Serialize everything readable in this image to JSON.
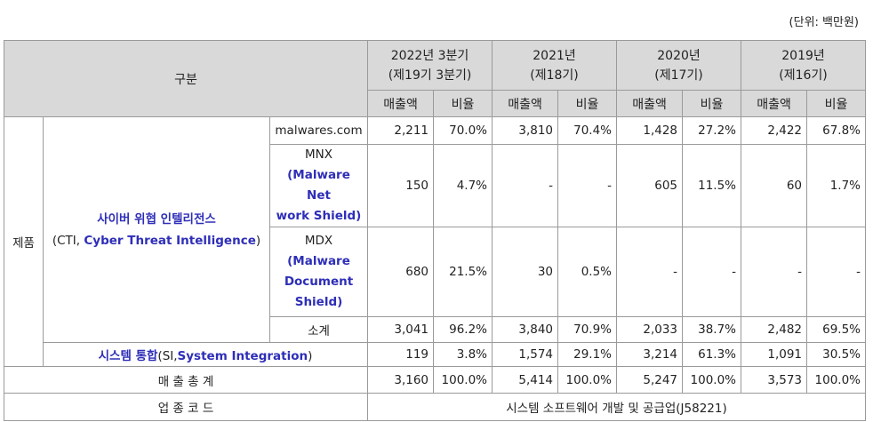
{
  "unit_label": "(단위: 백만원)",
  "header": {
    "category": "구분",
    "periods": [
      {
        "year": "2022년 3분기",
        "term": "(제19기 3분기)"
      },
      {
        "year": "2021년",
        "term": "(제18기)"
      },
      {
        "year": "2020년",
        "term": "(제17기)"
      },
      {
        "year": "2019년",
        "term": "(제16기)"
      }
    ],
    "sales": "매출액",
    "ratio": "비율"
  },
  "products_label": "제품",
  "cti": {
    "name": "사이버 위협 인텔리전스",
    "paren": "(CTI, ",
    "english": "Cyber Threat Intelligence",
    "close": ")"
  },
  "rows": {
    "malwares": {
      "label": "malwares.com",
      "v": [
        "2,211",
        "70.0%",
        "3,810",
        "70.4%",
        "1,428",
        "27.2%",
        "2,422",
        "67.8%"
      ]
    },
    "mnx": {
      "label": "MNX",
      "sub1": "(Malware Net",
      "sub2": "work Shield)",
      "v": [
        "150",
        "4.7%",
        "-",
        "-",
        "605",
        "11.5%",
        "60",
        "1.7%"
      ]
    },
    "mdx": {
      "label": "MDX",
      "sub1": "(Malware",
      "sub2": "Document",
      "sub3": "Shield)",
      "v": [
        "680",
        "21.5%",
        "30",
        "0.5%",
        "-",
        "-",
        "-",
        "-"
      ]
    },
    "subtotal": {
      "label": "소계",
      "v": [
        "3,041",
        "96.2%",
        "3,840",
        "70.9%",
        "2,033",
        "38.7%",
        "2,482",
        "69.5%"
      ]
    },
    "si": {
      "name": "시스템 통합",
      "paren": "(SI,",
      "english": "System Integration",
      "close": ")",
      "v": [
        "119",
        "3.8%",
        "1,574",
        "29.1%",
        "3,214",
        "61.3%",
        "1,091",
        "30.5%"
      ]
    },
    "total": {
      "label": "매 출 총 계",
      "v": [
        "3,160",
        "100.0%",
        "5,414",
        "100.0%",
        "5,247",
        "100.0%",
        "3,573",
        "100.0%"
      ]
    },
    "industry": {
      "label": "업 종 코 드",
      "value": "시스템 소프트웨어 개발 및 공급업(J58221)"
    }
  }
}
